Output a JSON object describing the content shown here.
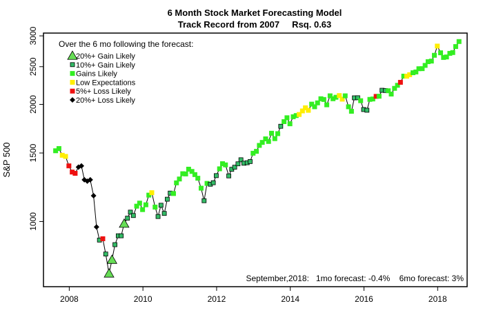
{
  "chart_data": {
    "type": "scatter",
    "title": "6 Month Stock Market Forecasting Model",
    "subtitle": "Track Record from 2007     Rsq. 0.63",
    "xlabel": "",
    "ylabel": "S&P 500",
    "xlim": [
      2007.3,
      2018.8
    ],
    "ylim": [
      680,
      3050
    ],
    "y_scale": "log",
    "x_ticks": [
      2008,
      2010,
      2012,
      2014,
      2016,
      2018
    ],
    "x_tick_labels": [
      "2008",
      "2010",
      "2012",
      "2014",
      "2016",
      "2018"
    ],
    "y_ticks": [
      1000,
      1500,
      2000,
      2500,
      3000
    ],
    "y_tick_labels": [
      "1000",
      "1500",
      "2000",
      "2500",
      "3000"
    ],
    "grid": false,
    "legend": {
      "header": "Over the 6 mo following the forecast:",
      "position": "top-left",
      "entries": [
        {
          "label": "20%+ Gain Likely",
          "category": "gain20",
          "marker": "triangle",
          "color": "#66dd55"
        },
        {
          "label": "10%+ Gain Likely",
          "category": "gain10",
          "marker": "square-outlined",
          "color": "#33bb66"
        },
        {
          "label": "Gains Likely",
          "category": "gains",
          "marker": "square",
          "color": "#33ee22"
        },
        {
          "label": "Low Expectations",
          "category": "low",
          "marker": "square",
          "color": "#ffee00"
        },
        {
          "label": "5%+ Loss Likely",
          "category": "loss5",
          "marker": "square",
          "color": "#ee1111"
        },
        {
          "label": "20%+ Loss Likely",
          "category": "loss20",
          "marker": "diamond",
          "color": "#000000"
        }
      ]
    },
    "annotation": "September,2018:   1mo forecast: -0.4%    6mo forecast: 3%",
    "series": [
      {
        "values": [
          [
            2007.63,
            1520,
            "gains"
          ],
          [
            2007.72,
            1540,
            "gains"
          ],
          [
            2007.81,
            1480,
            "low"
          ],
          [
            2007.9,
            1470,
            "low"
          ],
          [
            2007.99,
            1390,
            "loss5"
          ],
          [
            2008.08,
            1340,
            "loss5"
          ],
          [
            2008.16,
            1330,
            "loss5"
          ],
          [
            2008.25,
            1380,
            "loss20"
          ],
          [
            2008.33,
            1390,
            "loss20"
          ],
          [
            2008.41,
            1280,
            "loss20"
          ],
          [
            2008.49,
            1270,
            "loss20"
          ],
          [
            2008.57,
            1280,
            "loss20"
          ],
          [
            2008.66,
            1165,
            "loss20"
          ],
          [
            2008.74,
            968,
            "loss20"
          ],
          [
            2008.82,
            896,
            "gain10"
          ],
          [
            2008.91,
            903,
            "loss5"
          ],
          [
            2008.99,
            825,
            "gain10"
          ],
          [
            2009.08,
            735,
            "gain20"
          ],
          [
            2009.16,
            797,
            "gain20"
          ],
          [
            2009.24,
            872,
            "gain10"
          ],
          [
            2009.33,
            919,
            "gain10"
          ],
          [
            2009.41,
            919,
            "gain10"
          ],
          [
            2009.49,
            987,
            "gain20"
          ],
          [
            2009.58,
            1020,
            "gain10"
          ],
          [
            2009.66,
            1057,
            "gain10"
          ],
          [
            2009.74,
            1036,
            "gain10"
          ],
          [
            2009.83,
            1095,
            "gains"
          ],
          [
            2009.91,
            1115,
            "gains"
          ],
          [
            2009.99,
            1073,
            "gains"
          ],
          [
            2010.08,
            1104,
            "gains"
          ],
          [
            2010.16,
            1169,
            "gains"
          ],
          [
            2010.24,
            1186,
            "low"
          ],
          [
            2010.33,
            1089,
            "gains"
          ],
          [
            2010.41,
            1030,
            "gain10"
          ],
          [
            2010.49,
            1101,
            "gain10"
          ],
          [
            2010.58,
            1049,
            "gain10"
          ],
          [
            2010.66,
            1141,
            "gain10"
          ],
          [
            2010.74,
            1183,
            "gain10"
          ],
          [
            2010.83,
            1180,
            "gains"
          ],
          [
            2010.91,
            1257,
            "gains"
          ],
          [
            2010.99,
            1286,
            "gains"
          ],
          [
            2011.08,
            1327,
            "gains"
          ],
          [
            2011.16,
            1325,
            "gains"
          ],
          [
            2011.24,
            1363,
            "gains"
          ],
          [
            2011.33,
            1345,
            "gains"
          ],
          [
            2011.41,
            1320,
            "gains"
          ],
          [
            2011.49,
            1292,
            "gains"
          ],
          [
            2011.58,
            1218,
            "gains"
          ],
          [
            2011.66,
            1131,
            "gain10"
          ],
          [
            2011.74,
            1253,
            "gains"
          ],
          [
            2011.83,
            1247,
            "gain10"
          ],
          [
            2011.91,
            1258,
            "gain10"
          ],
          [
            2011.99,
            1312,
            "gain10"
          ],
          [
            2012.08,
            1366,
            "gains"
          ],
          [
            2012.16,
            1408,
            "gains"
          ],
          [
            2012.24,
            1398,
            "gains"
          ],
          [
            2012.33,
            1310,
            "gain10"
          ],
          [
            2012.41,
            1362,
            "gain10"
          ],
          [
            2012.49,
            1379,
            "gain10"
          ],
          [
            2012.58,
            1407,
            "gain10"
          ],
          [
            2012.66,
            1441,
            "gain10"
          ],
          [
            2012.74,
            1412,
            "gain10"
          ],
          [
            2012.83,
            1416,
            "gain10"
          ],
          [
            2012.91,
            1426,
            "gain10"
          ],
          [
            2012.99,
            1498,
            "gains"
          ],
          [
            2013.08,
            1515,
            "gains"
          ],
          [
            2013.16,
            1569,
            "gains"
          ],
          [
            2013.24,
            1597,
            "gains"
          ],
          [
            2013.33,
            1631,
            "gains"
          ],
          [
            2013.41,
            1606,
            "gains"
          ],
          [
            2013.49,
            1686,
            "gains"
          ],
          [
            2013.58,
            1633,
            "gains"
          ],
          [
            2013.66,
            1682,
            "gains"
          ],
          [
            2013.74,
            1757,
            "gain10"
          ],
          [
            2013.83,
            1806,
            "gains"
          ],
          [
            2013.91,
            1848,
            "gains"
          ],
          [
            2013.99,
            1783,
            "gains"
          ],
          [
            2014.08,
            1859,
            "gains"
          ],
          [
            2014.16,
            1872,
            "gains"
          ],
          [
            2014.24,
            1884,
            "low"
          ],
          [
            2014.33,
            1924,
            "low"
          ],
          [
            2014.41,
            1960,
            "low"
          ],
          [
            2014.49,
            1931,
            "low"
          ],
          [
            2014.58,
            2003,
            "gains"
          ],
          [
            2014.66,
            1972,
            "gains"
          ],
          [
            2014.74,
            2018,
            "gains"
          ],
          [
            2014.83,
            2068,
            "gains"
          ],
          [
            2014.91,
            2059,
            "gains"
          ],
          [
            2014.99,
            1995,
            "gains"
          ],
          [
            2015.08,
            2104,
            "gains"
          ],
          [
            2015.16,
            2068,
            "gains"
          ],
          [
            2015.24,
            2086,
            "gains"
          ],
          [
            2015.33,
            2107,
            "low"
          ],
          [
            2015.41,
            2063,
            "low"
          ],
          [
            2015.49,
            2104,
            "gains"
          ],
          [
            2015.58,
            1972,
            "gains"
          ],
          [
            2015.66,
            1920,
            "gains"
          ],
          [
            2015.74,
            2079,
            "gain10"
          ],
          [
            2015.83,
            2080,
            "gain10"
          ],
          [
            2015.91,
            2044,
            "gains"
          ],
          [
            2015.99,
            1940,
            "gain10"
          ],
          [
            2016.08,
            1932,
            "gain10"
          ],
          [
            2016.16,
            2060,
            "gains"
          ],
          [
            2016.24,
            2065,
            "gains"
          ],
          [
            2016.33,
            2097,
            "loss5"
          ],
          [
            2016.41,
            2099,
            "gains"
          ],
          [
            2016.49,
            2174,
            "gain10"
          ],
          [
            2016.58,
            2171,
            "gain10"
          ],
          [
            2016.66,
            2168,
            "gains"
          ],
          [
            2016.74,
            2126,
            "gains"
          ],
          [
            2016.83,
            2199,
            "gains"
          ],
          [
            2016.91,
            2239,
            "gains"
          ],
          [
            2016.99,
            2279,
            "loss5"
          ],
          [
            2017.08,
            2364,
            "gains"
          ],
          [
            2017.16,
            2363,
            "low"
          ],
          [
            2017.24,
            2384,
            "low"
          ],
          [
            2017.33,
            2412,
            "gains"
          ],
          [
            2017.41,
            2423,
            "gains"
          ],
          [
            2017.49,
            2470,
            "gains"
          ],
          [
            2017.58,
            2471,
            "gains"
          ],
          [
            2017.66,
            2519,
            "gains"
          ],
          [
            2017.74,
            2575,
            "gains"
          ],
          [
            2017.83,
            2584,
            "gains"
          ],
          [
            2017.91,
            2674,
            "gains"
          ],
          [
            2017.99,
            2824,
            "low"
          ],
          [
            2018.08,
            2714,
            "gains"
          ],
          [
            2018.16,
            2640,
            "gains"
          ],
          [
            2018.24,
            2648,
            "gains"
          ],
          [
            2018.33,
            2705,
            "gains"
          ],
          [
            2018.41,
            2718,
            "gains"
          ],
          [
            2018.49,
            2816,
            "gains"
          ],
          [
            2018.58,
            2901,
            "gains"
          ]
        ]
      }
    ]
  }
}
